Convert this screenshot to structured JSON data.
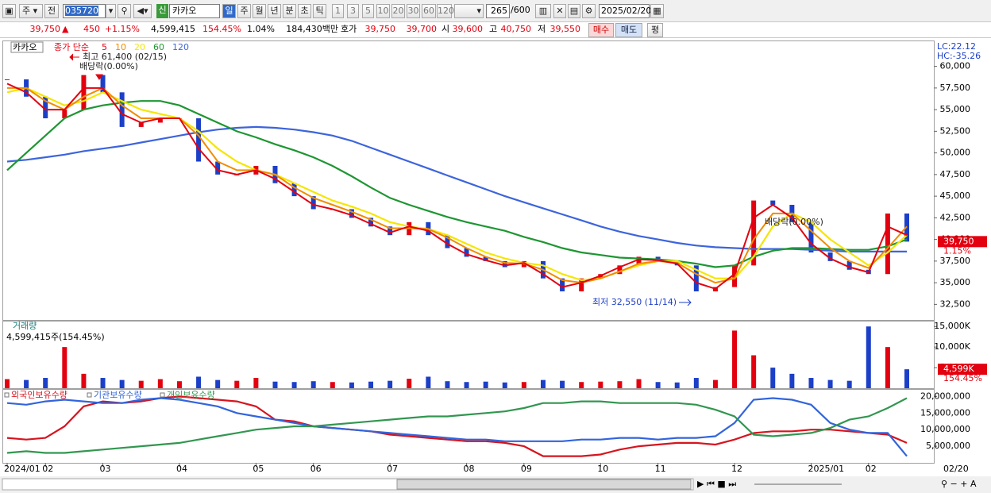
{
  "toolbar": {
    "market": "주",
    "all": "전",
    "code": "035720",
    "badge": "신",
    "name": "카카오",
    "periods": [
      "일",
      "주",
      "월",
      "년",
      "분",
      "초",
      "틱"
    ],
    "intervals": [
      "1",
      "3",
      "5",
      "10",
      "20",
      "30",
      "60",
      "120"
    ],
    "count": "265",
    "max": "/600",
    "date": "2025/02/20"
  },
  "quote": {
    "price": "39,750",
    "arrow": "▲",
    "change": "450",
    "pct": "+1.15%",
    "volume": "4,599,415",
    "volume_pct": "154.45%",
    "turnover": "1.04%",
    "amount": "184,430백만",
    "ask_label": "호가",
    "ask": "39,750",
    "bid": "39,700",
    "open_label": "시",
    "open": "39,600",
    "high_label": "고",
    "high": "40,750",
    "low_label": "저",
    "low": "39,550",
    "buy": "매수",
    "sell": "매도",
    "avg": "평"
  },
  "chart_data": [
    {
      "type": "stock",
      "title": "카카오",
      "subtitle": "종가 단순",
      "lc": "LC:22.12",
      "hc": "HC:-35.26",
      "up_color": "#e3000f",
      "down_color": "#1c3fc8",
      "close": [
        58500,
        56500,
        54000,
        55000,
        59000,
        57000,
        53000,
        53500,
        54000,
        54000,
        49000,
        47500,
        47500,
        48500,
        46500,
        45000,
        43500,
        43500,
        42500,
        41500,
        40500,
        42000,
        40500,
        39000,
        38000,
        37500,
        36800,
        37500,
        35500,
        34000,
        35500,
        36000,
        37000,
        38000,
        37500,
        37000,
        34000,
        34500,
        37000,
        44500,
        44000,
        42000,
        38500,
        37500,
        36500,
        36000,
        43000,
        39750
      ],
      "series": [
        {
          "name": "5",
          "color": "#e3000f",
          "values": [
            58000,
            57000,
            55000,
            55000,
            57500,
            57500,
            54500,
            53500,
            54000,
            54000,
            50500,
            48000,
            47500,
            48000,
            47000,
            45500,
            44000,
            43500,
            42800,
            41800,
            40800,
            41500,
            41000,
            39500,
            38300,
            37600,
            37000,
            37300,
            36000,
            34500,
            35000,
            35800,
            36800,
            37700,
            37600,
            37200,
            35000,
            34300,
            36000,
            42500,
            44000,
            42500,
            39500,
            37800,
            36800,
            36200,
            41500,
            40500
          ]
        },
        {
          "name": "10",
          "color": "#f08c00",
          "values": [
            57500,
            57500,
            56000,
            55000,
            56500,
            57500,
            55500,
            54000,
            54000,
            54000,
            52000,
            49000,
            48000,
            48000,
            47500,
            46000,
            44800,
            44000,
            43200,
            42300,
            41300,
            41300,
            41200,
            40200,
            39000,
            38000,
            37300,
            37200,
            36500,
            35300,
            35000,
            35500,
            36300,
            37200,
            37500,
            37300,
            36000,
            35000,
            35500,
            40000,
            43000,
            43000,
            41000,
            39000,
            37500,
            36700,
            39000,
            41500
          ]
        },
        {
          "name": "20",
          "color": "#f5e600",
          "values": [
            57000,
            57500,
            56500,
            55500,
            56000,
            57000,
            56000,
            55000,
            54500,
            54000,
            52500,
            50500,
            49000,
            48000,
            47500,
            46500,
            45500,
            44500,
            43800,
            43000,
            42000,
            41500,
            41200,
            40500,
            39500,
            38500,
            37800,
            37300,
            37000,
            36000,
            35300,
            35500,
            36300,
            37000,
            37500,
            37500,
            36500,
            35500,
            35500,
            38000,
            41500,
            43000,
            42000,
            40000,
            38500,
            37000,
            38500,
            40500
          ]
        },
        {
          "name": "60",
          "color": "#1e9632",
          "values": [
            48000,
            50000,
            52000,
            54000,
            55000,
            55500,
            55800,
            56000,
            56000,
            55500,
            54500,
            53500,
            52500,
            51800,
            51000,
            50300,
            49500,
            48500,
            47300,
            46000,
            44800,
            44000,
            43300,
            42600,
            42000,
            41500,
            41000,
            40300,
            39700,
            39000,
            38500,
            38200,
            37900,
            37800,
            37700,
            37500,
            37200,
            36800,
            37000,
            38000,
            38700,
            39000,
            39000,
            38900,
            38800,
            38800,
            39200,
            40000
          ]
        },
        {
          "name": "120",
          "color": "#3c64dc",
          "values": [
            49000,
            49200,
            49500,
            49800,
            50200,
            50500,
            50800,
            51200,
            51600,
            52000,
            52400,
            52700,
            52900,
            53000,
            52900,
            52700,
            52400,
            52000,
            51400,
            50600,
            49800,
            49000,
            48200,
            47400,
            46600,
            45800,
            45000,
            44300,
            43600,
            42900,
            42200,
            41500,
            40900,
            40400,
            40000,
            39600,
            39300,
            39100,
            39000,
            38900,
            38900,
            38900,
            38800,
            38700,
            38600,
            38600,
            38600,
            38600
          ]
        }
      ],
      "annotations": [
        "최고 61,400 (02/15)",
        "배당락(0.00%)",
        "배당락(0.00%)",
        "최저 32,550 (11/14)"
      ],
      "ylim": [
        30700,
        62900
      ],
      "yticks": [
        {
          "value": 32500,
          "label": "32,500"
        },
        {
          "value": 35000,
          "label": "35,000"
        },
        {
          "value": 37500,
          "label": "37,500"
        },
        {
          "value": 40000,
          "label": "40,000"
        },
        {
          "value": 42500,
          "label": "42,500"
        },
        {
          "value": 45000,
          "label": "45,000"
        },
        {
          "value": 47500,
          "label": "47,500"
        },
        {
          "value": 50000,
          "label": "50,000"
        },
        {
          "value": 52500,
          "label": "52,500"
        },
        {
          "value": 55000,
          "label": "55,000"
        },
        {
          "value": 57500,
          "label": "57,500"
        },
        {
          "value": 60000,
          "label": "60,000"
        }
      ],
      "marker": {
        "value": 39750,
        "label": "39,750",
        "change": "1.15%"
      }
    },
    {
      "type": "bar",
      "title": "거래량",
      "subtitle": "4,599,415주(154.45%)",
      "values": [
        2200,
        2000,
        2500,
        10000,
        3500,
        2500,
        2000,
        1800,
        2200,
        1700,
        2800,
        2000,
        1800,
        2500,
        1600,
        1500,
        1700,
        1500,
        1400,
        1600,
        1800,
        2300,
        2800,
        1700,
        1500,
        1600,
        1400,
        1500,
        2000,
        1800,
        1500,
        1600,
        1700,
        2200,
        1500,
        1400,
        2500,
        2000,
        14000,
        8000,
        5000,
        3500,
        2500,
        2000,
        1800,
        15000,
        10000,
        4599
      ],
      "ylim": [
        0,
        16200
      ],
      "yticks": [
        {
          "value": 5000,
          "label": "5,000K"
        },
        {
          "value": 10000,
          "label": "10,000K"
        },
        {
          "value": 15000,
          "label": "15,000K"
        }
      ],
      "marker": {
        "value": 4599,
        "label": "4,599K",
        "change": "154.45%"
      }
    },
    {
      "type": "line",
      "categories": [
        "2024/01",
        null,
        "02",
        null,
        null,
        "03",
        null,
        null,
        null,
        "04",
        null,
        null,
        null,
        "05",
        null,
        null,
        "06",
        null,
        null,
        null,
        "07",
        null,
        null,
        null,
        "08",
        null,
        null,
        "09",
        null,
        null,
        null,
        "10",
        null,
        null,
        "11",
        null,
        null,
        null,
        "12",
        null,
        null,
        null,
        "2025/01",
        null,
        null,
        "02",
        null,
        null
      ],
      "last_label": "02/20",
      "series": [
        {
          "name": "외국인보유수량",
          "color": "#d7141e",
          "values": [
            7500000,
            7000000,
            7500000,
            11000000,
            17000000,
            18500000,
            18000000,
            18500000,
            19500000,
            20000000,
            19500000,
            19000000,
            18500000,
            17000000,
            13000000,
            12500000,
            11000000,
            10500000,
            10000000,
            9500000,
            8500000,
            8000000,
            7500000,
            7000000,
            6500000,
            6500000,
            6000000,
            5000000,
            2000000,
            2000000,
            2000000,
            2500000,
            4000000,
            5000000,
            5500000,
            6000000,
            6000000,
            5500000,
            7000000,
            9000000,
            9500000,
            9500000,
            10000000,
            10000000,
            9500000,
            9000000,
            8500000,
            6000000
          ]
        },
        {
          "name": "기관보유수량",
          "color": "#3264dc",
          "values": [
            18000000,
            17500000,
            18500000,
            19000000,
            18500000,
            18000000,
            18000000,
            19000000,
            19500000,
            19000000,
            18000000,
            17000000,
            15000000,
            14000000,
            13000000,
            12000000,
            11000000,
            10500000,
            10000000,
            9500000,
            9000000,
            8500000,
            8000000,
            7500000,
            7000000,
            7000000,
            6500000,
            6500000,
            6500000,
            6500000,
            7000000,
            7000000,
            7500000,
            7500000,
            7000000,
            7500000,
            7500000,
            8000000,
            12000000,
            19000000,
            19500000,
            19000000,
            17500000,
            12000000,
            10000000,
            9000000,
            9000000,
            2000000
          ]
        },
        {
          "name": "개인보유수량",
          "color": "#329650",
          "values": [
            3000000,
            3500000,
            3000000,
            3000000,
            3500000,
            4000000,
            4500000,
            5000000,
            5500000,
            6000000,
            7000000,
            8000000,
            9000000,
            10000000,
            10500000,
            11000000,
            11000000,
            11500000,
            12000000,
            12500000,
            13000000,
            13500000,
            14000000,
            14000000,
            14500000,
            15000000,
            15500000,
            16500000,
            18000000,
            18000000,
            18500000,
            18500000,
            18000000,
            18000000,
            18000000,
            18000000,
            17500000,
            16000000,
            14000000,
            8500000,
            8000000,
            8500000,
            9000000,
            10500000,
            13000000,
            14000000,
            16500000,
            19500000
          ]
        }
      ],
      "ylim": [
        0,
        22000000
      ],
      "yticks": [
        {
          "value": 5000000,
          "label": "5,000,000"
        },
        {
          "value": 10000000,
          "label": "10,000,000"
        },
        {
          "value": 15000000,
          "label": "15,000,000"
        },
        {
          "value": 20000000,
          "label": "20,000,000"
        }
      ]
    }
  ]
}
